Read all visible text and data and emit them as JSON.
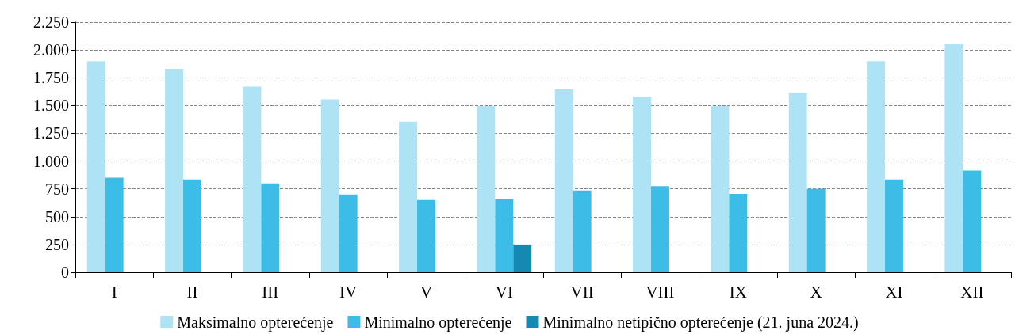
{
  "chart_data": {
    "type": "bar",
    "categories": [
      "I",
      "II",
      "III",
      "IV",
      "V",
      "VI",
      "VII",
      "VIII",
      "IX",
      "X",
      "XI",
      "XII"
    ],
    "series": [
      {
        "name": "Maksimalno opterećenje",
        "color": "#aee3f5",
        "values": [
          1900,
          1830,
          1670,
          1555,
          1355,
          1495,
          1645,
          1580,
          1495,
          1615,
          1900,
          2050
        ]
      },
      {
        "name": "Minimalno opterećenje",
        "color": "#3bbde8",
        "values": [
          850,
          835,
          800,
          700,
          650,
          660,
          735,
          775,
          705,
          750,
          835,
          915
        ]
      },
      {
        "name": "Minimalno netipično opterećenje (21. juna 2024.)",
        "color": "#1689b3",
        "values": [
          null,
          null,
          null,
          null,
          null,
          250,
          null,
          null,
          null,
          null,
          null,
          null
        ]
      }
    ],
    "ylim": [
      0,
      2250
    ],
    "yticks": [
      0,
      250,
      500,
      750,
      {
        "value": 1000,
        "label": "1.000"
      },
      {
        "value": 1250,
        "label": "1.250"
      },
      {
        "value": 1500,
        "label": "1.500"
      },
      {
        "value": 1750,
        "label": "1.750"
      },
      {
        "value": 2000,
        "label": "2.000"
      },
      {
        "value": 2250,
        "label": "2.250"
      }
    ],
    "grid": "y",
    "legend": "bottom"
  }
}
